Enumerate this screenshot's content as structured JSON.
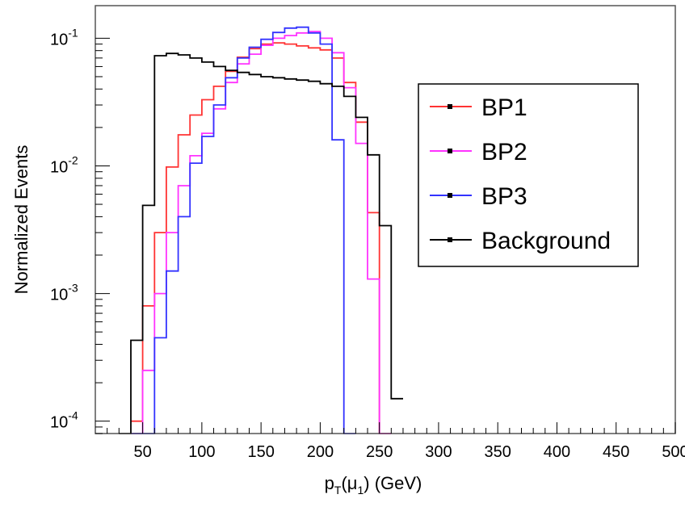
{
  "chart_data": {
    "type": "line",
    "step": true,
    "title": "",
    "xlabel": {
      "base": "p",
      "sub1": "T",
      "mid": "(μ",
      "sub2": "1",
      "tail": ") (GeV)"
    },
    "ylabel": "Normalized Events",
    "xlim": [
      10,
      500
    ],
    "ylim": [
      8e-05,
      0.18
    ],
    "yscale": "log",
    "grid": false,
    "legend": "right",
    "x_ticks": [
      "50",
      "100",
      "150",
      "200",
      "250",
      "300",
      "350",
      "400",
      "450",
      "500"
    ],
    "x_tick_values": [
      50,
      100,
      150,
      200,
      250,
      300,
      350,
      400,
      450,
      500
    ],
    "y_ticks": [
      {
        "value": 0.0001,
        "base": "10",
        "exp": "-4"
      },
      {
        "value": 0.001,
        "base": "10",
        "exp": "-3"
      },
      {
        "value": 0.01,
        "base": "10",
        "exp": "-2"
      },
      {
        "value": 0.1,
        "base": "10",
        "exp": "-1"
      }
    ],
    "bin_width": 10,
    "series": [
      {
        "name": "BP1",
        "color": "#ff3333",
        "bins_start": 40,
        "values": [
          0.0001,
          0.0008,
          0.003,
          0.0098,
          0.0175,
          0.025,
          0.033,
          0.042,
          0.055,
          0.071,
          0.083,
          0.09,
          0.092,
          0.09,
          0.087,
          0.084,
          0.081,
          0.07,
          0.045,
          0.022,
          0.0043,
          8e-05
        ]
      },
      {
        "name": "BP2",
        "color": "#ff33ff",
        "bins_start": 40,
        "values": [
          8e-05,
          0.00025,
          0.001,
          0.003,
          0.007,
          0.012,
          0.018,
          0.028,
          0.045,
          0.063,
          0.075,
          0.088,
          0.1,
          0.105,
          0.11,
          0.113,
          0.1,
          0.077,
          0.041,
          0.015,
          0.0013,
          8e-05
        ]
      },
      {
        "name": "BP3",
        "color": "#3333ff",
        "bins_start": 40,
        "values": [
          8e-05,
          8e-05,
          0.00045,
          0.0015,
          0.004,
          0.0105,
          0.017,
          0.03,
          0.049,
          0.07,
          0.085,
          0.098,
          0.111,
          0.12,
          0.122,
          0.11,
          0.09,
          0.016,
          8e-05
        ]
      },
      {
        "name": "Background",
        "color": "#000000",
        "bins_start": 30,
        "values": [
          8e-05,
          0.00043,
          0.0049,
          0.073,
          0.076,
          0.074,
          0.07,
          0.065,
          0.06,
          0.056,
          0.054,
          0.052,
          0.05,
          0.049,
          0.048,
          0.047,
          0.046,
          0.044,
          0.042,
          0.035,
          0.024,
          0.0122,
          0.0034,
          0.00015
        ]
      }
    ]
  }
}
